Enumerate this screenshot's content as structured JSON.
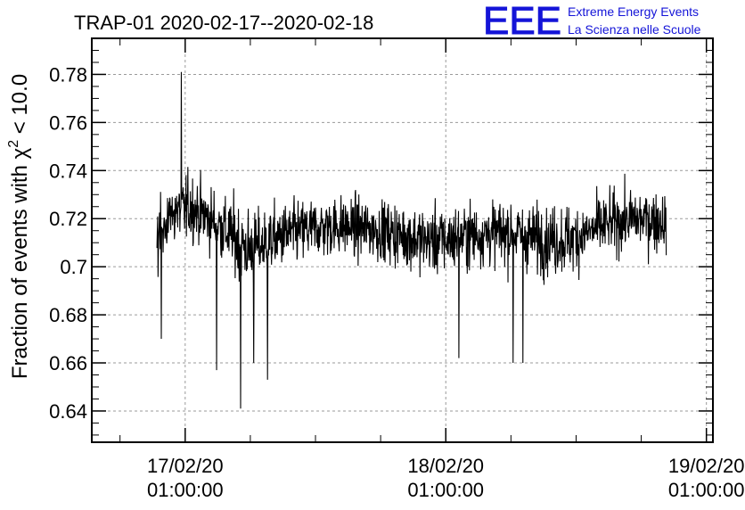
{
  "chart_data": {
    "type": "line",
    "title": "TRAP-01 2020-02-17--2020-02-18",
    "ylabel_prefix": "Fraction of events with χ",
    "ylabel_superscript": "2",
    "ylabel_suffix": " < 10.0",
    "xlabel": "",
    "ylim": [
      0.627,
      0.795
    ],
    "xlim_hours": [
      -8.6,
      48.6
    ],
    "x_ticks": [
      {
        "hours": 0,
        "date": "17/02/20",
        "time": "01:00:00"
      },
      {
        "hours": 24,
        "date": "18/02/20",
        "time": "01:00:00"
      },
      {
        "hours": 48,
        "date": "19/02/20",
        "time": "01:00:00"
      }
    ],
    "y_ticks": [
      {
        "value": 0.64,
        "label": "0.64"
      },
      {
        "value": 0.66,
        "label": "0.66"
      },
      {
        "value": 0.68,
        "label": "0.68"
      },
      {
        "value": 0.7,
        "label": "0.7"
      },
      {
        "value": 0.72,
        "label": "0.72"
      },
      {
        "value": 0.74,
        "label": "0.74"
      },
      {
        "value": 0.76,
        "label": "0.76"
      },
      {
        "value": 0.78,
        "label": "0.78"
      }
    ],
    "grid": true,
    "series": [
      {
        "x_hours": [
          -2.6,
          -2.2,
          -1.8,
          -1.4,
          -1.0,
          -0.5,
          0.0,
          0.6,
          1.5,
          3.0,
          4.5,
          5.1,
          5.5,
          6.0,
          7.0,
          8.0,
          9.0,
          10.0,
          12.0,
          14.0,
          16.0,
          18.0,
          20.0,
          22.0,
          24.0,
          26.0,
          28.0,
          30.0,
          32.0,
          34.0,
          36.0,
          38.0,
          40.0,
          42.0,
          44.0,
          44.3
        ],
        "y": [
          0.712,
          0.716,
          0.719,
          0.721,
          0.722,
          0.723,
          0.724,
          0.725,
          0.722,
          0.718,
          0.712,
          0.71,
          0.708,
          0.707,
          0.709,
          0.711,
          0.713,
          0.714,
          0.716,
          0.717,
          0.716,
          0.715,
          0.713,
          0.711,
          0.711,
          0.713,
          0.714,
          0.714,
          0.712,
          0.711,
          0.712,
          0.716,
          0.719,
          0.72,
          0.719,
          0.718
        ],
        "spread": [
          0.018,
          0.019,
          0.019,
          0.02,
          0.02,
          0.021,
          0.021,
          0.021,
          0.02,
          0.02,
          0.023,
          0.025,
          0.025,
          0.024,
          0.022,
          0.021,
          0.02,
          0.02,
          0.019,
          0.019,
          0.019,
          0.019,
          0.02,
          0.021,
          0.021,
          0.02,
          0.02,
          0.02,
          0.021,
          0.022,
          0.021,
          0.019,
          0.019,
          0.019,
          0.019,
          0.018
        ],
        "extremes": [
          {
            "hours": -0.35,
            "value": 0.781
          },
          {
            "hours": 5.1,
            "value": 0.641
          },
          {
            "hours": 2.9,
            "value": 0.657
          },
          {
            "hours": 7.6,
            "value": 0.653
          },
          {
            "hours": 6.3,
            "value": 0.66
          },
          {
            "hours": -2.2,
            "value": 0.67
          },
          {
            "hours": 30.2,
            "value": 0.66
          },
          {
            "hours": 31.1,
            "value": 0.66
          },
          {
            "hours": 25.2,
            "value": 0.662
          }
        ],
        "color": "#000000"
      }
    ]
  },
  "logo": {
    "mark": "EEE",
    "line1": "Extreme Energy Events",
    "line2": "La Scienza nelle Scuole",
    "color": "#1414d8"
  }
}
